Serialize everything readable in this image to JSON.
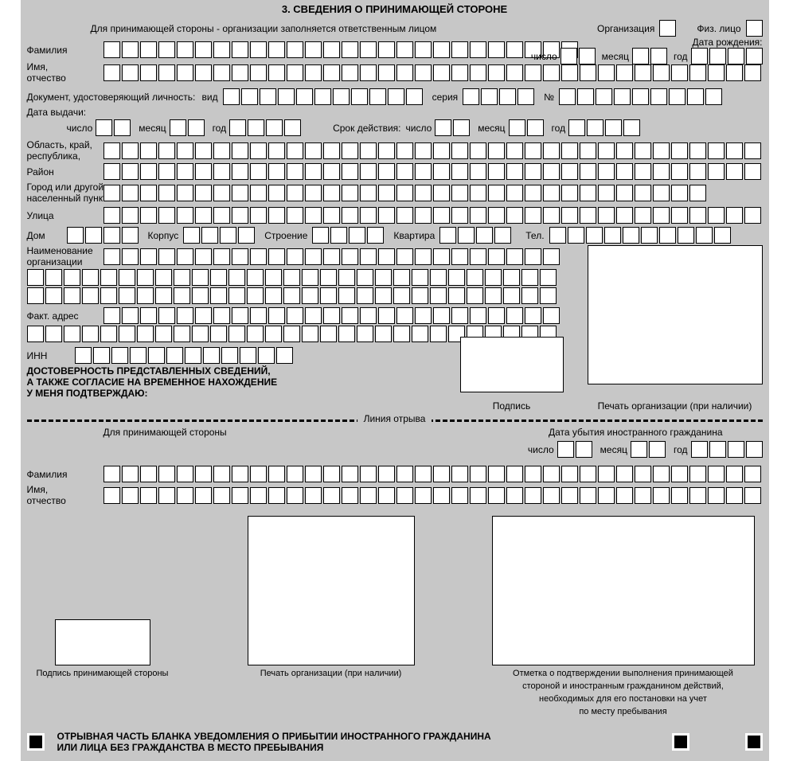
{
  "title": "3. СВЕДЕНИЯ О ПРИНИМАЮЩЕЙ СТОРОНЕ",
  "hint_top": "Для принимающей стороны - организации заполняется ответственным лицом",
  "org_label": "Организация",
  "phys_label": "Физ. лицо",
  "surname_label": "Фамилия",
  "name_patronymic_label": "Имя,\nотчество",
  "birthdate_label": "Дата рождения:",
  "day_label": "число",
  "month_label": "месяц",
  "year_label": "год",
  "doc_label": "Документ, удостоверяющий личность:",
  "type_label": "вид",
  "series_label": "серия",
  "number_label": "№",
  "issue_date_label": "Дата выдачи:",
  "validity_label": "Срок действия:",
  "region_label": "Область, край,\nреспублика,",
  "district_label": "Район",
  "city_label": "Город или другой\nнаселенный пункт",
  "street_label": "Улица",
  "house_label": "Дом",
  "building_label": "Корпус",
  "structure_label": "Строение",
  "apartment_label": "Квартира",
  "phone_label": "Тел.",
  "org_name_label": "Наименование\nорганизации",
  "fact_addr_label": "Факт. адрес",
  "inn_label": "ИНН",
  "confirm1": "ДОСТОВЕРНОСТЬ ПРЕДСТАВЛЕННЫХ СВЕДЕНИЙ,",
  "confirm2": "А ТАКЖЕ СОГЛАСИЕ НА ВРЕМЕННОЕ НАХОЖДЕНИЕ",
  "confirm3": "У МЕНЯ ПОДТВЕРЖДАЮ:",
  "signature_label": "Подпись",
  "seal_label": "Печать организации (при наличии)",
  "tear_label": "Линия  отрыва",
  "lower_hint": "Для принимающей стороны",
  "departure_label": "Дата убытия иностранного гражданина",
  "host_signature": "Подпись принимающей стороны",
  "mark_label1": "Отметка о подтверждении выполнения принимающей",
  "mark_label2": "стороной и иностранным гражданином действий,",
  "mark_label3": "необходимых для его постановки на учет",
  "mark_label4": "по месту пребывания",
  "footer1": "ОТРЫВНАЯ ЧАСТЬ БЛАНКА УВЕДОМЛЕНИЯ О ПРИБЫТИИ ИНОСТРАННОГО ГРАЖДАНИНА",
  "footer2": "ИЛИ ЛИЦА БЕЗ ГРАЖДАНСТВА В МЕСТО ПРЕБЫВАНИЯ",
  "cell_counts": {
    "surname": 26,
    "name": 36,
    "doc_type": 11,
    "doc_series": 4,
    "doc_no": 9,
    "region": 33,
    "district": 33,
    "city": 33,
    "street": 33,
    "house": 4,
    "building": 4,
    "structure": 4,
    "apartment": 4,
    "phone": 10,
    "org_name_r1": 19,
    "long_row": 36,
    "fact_addr_r1": 19,
    "inn": 12,
    "day": 2,
    "month": 2,
    "year": 4
  },
  "colors": {
    "bg": "#c7c7c7",
    "cell_bg": "#ffffff",
    "border": "#000000"
  }
}
